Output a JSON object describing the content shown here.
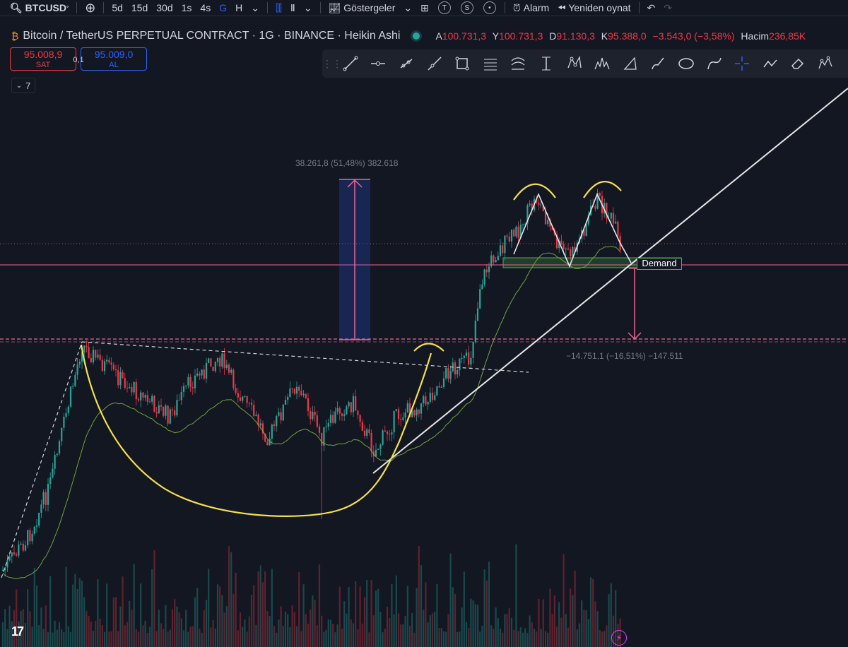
{
  "toolbar": {
    "symbol": "BTCUSD",
    "intervals": [
      "5d",
      "15d",
      "30d",
      "1s",
      "4s",
      "G",
      "H"
    ],
    "active_interval": "G",
    "indicators_label": "Göstergeler",
    "alarm_label": "Alarm",
    "replay_label": "Yeniden oynat",
    "badges": [
      "T",
      "S",
      "•"
    ]
  },
  "legend": {
    "title": "Bitcoin / TetherUS PERPETUAL CONTRACT · 1G · BINANCE · Heikin Ashi",
    "open_key": "A",
    "open": "100.731,3",
    "high_key": "Y",
    "high": "100.731,3",
    "low_key": "D",
    "low": "91.130,3",
    "close_key": "K",
    "close": "95.388,0",
    "change": "−3.543,0 (−3,58%)",
    "volume_key": "Hacim",
    "volume": "236,85K"
  },
  "trade": {
    "sell_price": "95.008,9",
    "sell_label": "SAT",
    "spread": "0,1",
    "buy_price": "95.009,0",
    "buy_label": "AL",
    "lot": "7"
  },
  "annotations": {
    "measure_up": "38.261,8 (51,48%) 382.618",
    "measure_down": "−14.751,1 (−16,51%) −147.511",
    "demand": "Demand"
  },
  "drawing_tools": [
    "trend-line",
    "horizontal-line",
    "ray",
    "extended-line",
    "rectangle",
    "parallel-channel",
    "regression-trend",
    "vertical-line",
    "xabcd-pattern",
    "head-shoulders",
    "triangle",
    "brush",
    "ellipse",
    "path",
    "crosshair",
    "polyline",
    "eraser",
    "elliott-wave"
  ],
  "colors": {
    "up": "#26a69a",
    "down": "#f23645",
    "accent": "#2962ff",
    "pink": "#f06292",
    "yellow": "#f5e04a",
    "background": "#131722"
  }
}
